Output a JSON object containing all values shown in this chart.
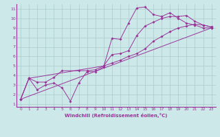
{
  "xlabel": "Windchill (Refroidissement éolien,°C)",
  "bg_color": "#cce8e8",
  "line_color": "#993399",
  "grid_color": "#aacccc",
  "xlim_min": -0.5,
  "xlim_max": 23.5,
  "ylim_min": 0.7,
  "ylim_max": 11.5,
  "xticks": [
    0,
    1,
    2,
    3,
    4,
    5,
    6,
    7,
    8,
    9,
    10,
    11,
    12,
    13,
    14,
    15,
    16,
    17,
    18,
    19,
    20,
    21,
    22,
    23
  ],
  "yticks": [
    1,
    2,
    3,
    4,
    5,
    6,
    7,
    8,
    9,
    10,
    11
  ],
  "lines": [
    {
      "x": [
        0,
        1,
        2,
        3,
        4,
        5,
        6,
        7,
        8,
        9,
        10,
        11,
        12,
        13,
        14,
        15,
        16,
        17,
        18,
        19,
        20,
        21,
        22,
        23
      ],
      "y": [
        1.5,
        3.7,
        2.5,
        3.0,
        3.2,
        2.7,
        1.3,
        3.2,
        4.4,
        4.4,
        4.9,
        7.9,
        7.8,
        9.5,
        11.1,
        11.2,
        10.4,
        10.2,
        10.6,
        10.0,
        9.5,
        9.3,
        9.0,
        9.0
      ]
    },
    {
      "x": [
        0,
        1,
        2,
        3,
        4,
        5,
        7,
        8,
        9,
        10,
        11,
        12,
        13,
        14,
        15,
        16,
        17,
        18,
        19,
        20,
        21,
        22,
        23
      ],
      "y": [
        1.5,
        3.7,
        3.3,
        3.3,
        3.8,
        4.5,
        4.5,
        4.5,
        4.6,
        5.0,
        6.2,
        6.3,
        6.6,
        8.2,
        9.2,
        9.6,
        10.0,
        10.2,
        10.2,
        10.3,
        9.7,
        9.3,
        9.1
      ]
    },
    {
      "x": [
        0,
        1,
        10,
        11,
        12,
        13,
        14,
        15,
        16,
        17,
        18,
        19,
        20,
        21,
        22,
        23
      ],
      "y": [
        1.5,
        3.7,
        5.0,
        5.3,
        5.6,
        6.0,
        6.3,
        6.8,
        7.6,
        8.1,
        8.6,
        9.0,
        9.2,
        9.4,
        9.3,
        9.1
      ]
    },
    {
      "x": [
        0,
        23
      ],
      "y": [
        1.5,
        9.0
      ]
    }
  ]
}
